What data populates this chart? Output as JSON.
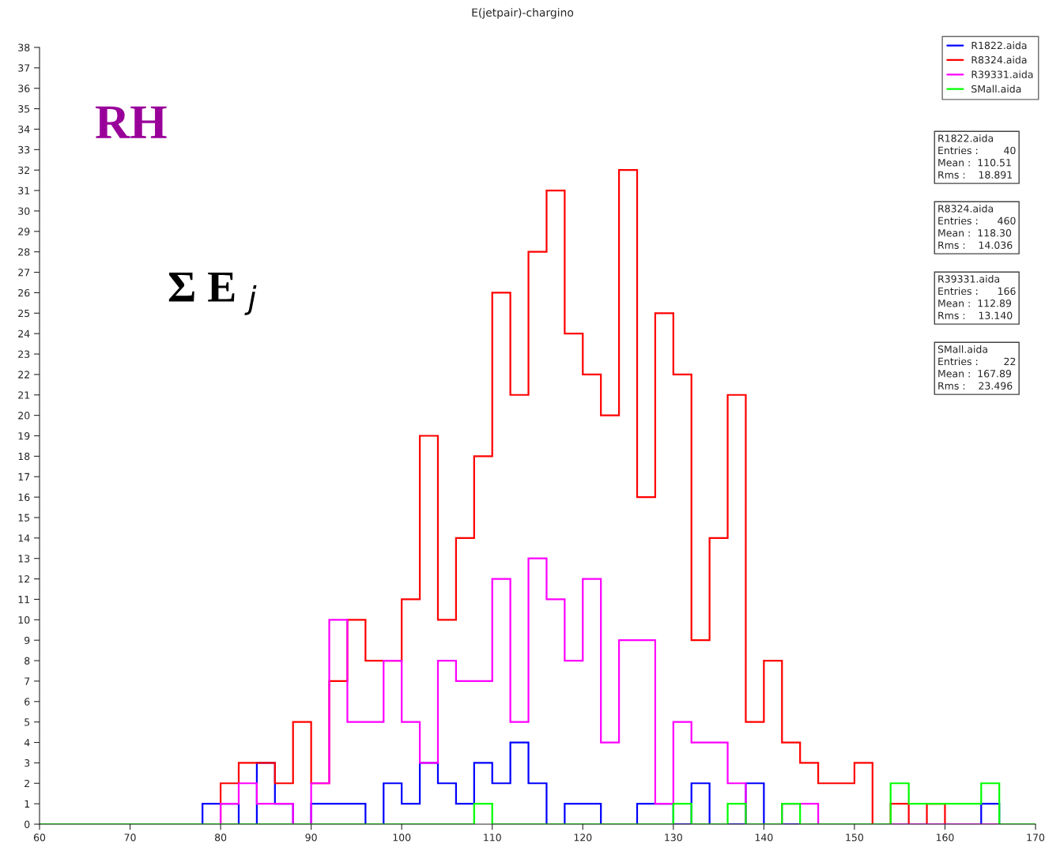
{
  "chart_data": {
    "type": "histogram",
    "title": "E(jetpair)-chargino",
    "bins": [
      60,
      62,
      64,
      66,
      68,
      70,
      72,
      74,
      76,
      78,
      80,
      82,
      84,
      86,
      88,
      90,
      92,
      94,
      96,
      98,
      100,
      102,
      104,
      106,
      108,
      110,
      112,
      114,
      116,
      118,
      120,
      122,
      124,
      126,
      128,
      130,
      132,
      134,
      136,
      138,
      140,
      142,
      144,
      146,
      148,
      150,
      152,
      154,
      156,
      158,
      160,
      162,
      164,
      166,
      168,
      170
    ],
    "series": [
      {
        "name": "R1822.aida",
        "color": "#0000ff",
        "values": [
          0,
          0,
          0,
          0,
          0,
          0,
          0,
          0,
          0,
          1,
          1,
          0,
          3,
          1,
          0,
          1,
          1,
          1,
          0,
          2,
          1,
          3,
          2,
          1,
          3,
          2,
          4,
          2,
          0,
          1,
          1,
          0,
          0,
          1,
          1,
          0,
          2,
          0,
          0,
          2,
          0,
          0,
          0,
          0,
          0,
          0,
          0,
          0,
          0,
          0,
          0,
          0,
          1,
          0,
          0
        ]
      },
      {
        "name": "R8324.aida",
        "color": "#ff0000",
        "values": [
          0,
          0,
          0,
          0,
          0,
          0,
          0,
          0,
          0,
          0,
          2,
          3,
          3,
          2,
          5,
          2,
          7,
          10,
          8,
          8,
          11,
          19,
          10,
          14,
          18,
          26,
          21,
          28,
          31,
          24,
          22,
          20,
          32,
          16,
          25,
          22,
          9,
          14,
          21,
          5,
          8,
          4,
          3,
          2,
          2,
          3,
          0,
          1,
          0,
          1,
          0,
          0,
          0,
          0,
          0
        ]
      },
      {
        "name": "R39331.aida",
        "color": "#ff00ff",
        "values": [
          0,
          0,
          0,
          0,
          0,
          0,
          0,
          0,
          0,
          0,
          1,
          2,
          1,
          1,
          0,
          2,
          10,
          5,
          5,
          8,
          5,
          3,
          8,
          7,
          7,
          12,
          5,
          13,
          11,
          8,
          12,
          4,
          9,
          9,
          1,
          5,
          4,
          4,
          2,
          0,
          0,
          1,
          1,
          0,
          0,
          0,
          0,
          0,
          0,
          0,
          0,
          0,
          0,
          0,
          0
        ]
      },
      {
        "name": "SMall.aida",
        "color": "#00ff00",
        "values": [
          0,
          0,
          0,
          0,
          0,
          0,
          0,
          0,
          0,
          0,
          0,
          0,
          0,
          0,
          0,
          0,
          0,
          0,
          0,
          0,
          0,
          0,
          0,
          0,
          1,
          0,
          0,
          0,
          0,
          0,
          0,
          0,
          0,
          0,
          0,
          1,
          0,
          0,
          1,
          0,
          0,
          1,
          0,
          0,
          0,
          0,
          0,
          2,
          1,
          1,
          1,
          1,
          2,
          0,
          0
        ]
      }
    ],
    "xlim": [
      60,
      170
    ],
    "xticks": [
      60,
      70,
      80,
      90,
      100,
      110,
      120,
      130,
      140,
      150,
      160,
      170
    ],
    "ylim": [
      0,
      38
    ],
    "yticks": [
      0,
      1,
      2,
      3,
      4,
      5,
      6,
      7,
      8,
      9,
      10,
      11,
      12,
      13,
      14,
      15,
      16,
      17,
      18,
      19,
      20,
      21,
      22,
      23,
      24,
      25,
      26,
      27,
      28,
      29,
      30,
      31,
      32,
      33,
      34,
      35,
      36,
      37,
      38
    ],
    "legend": "top right",
    "annotations": [
      "RH",
      "Σ E $_{j}$",
      "R1822.aida\nEntries :        40\nMean :  110.51\nRms :    18.891",
      "R8324.aida\nEntries :      460\nMean :  118.30\nRms :    14.036",
      "R39331.aida\nEntries :      166\nMean :  112.89\nRms :    13.140",
      "SMall.aida\nEntries :        22\nMean :  167.89\nRms :    23.496"
    ]
  }
}
